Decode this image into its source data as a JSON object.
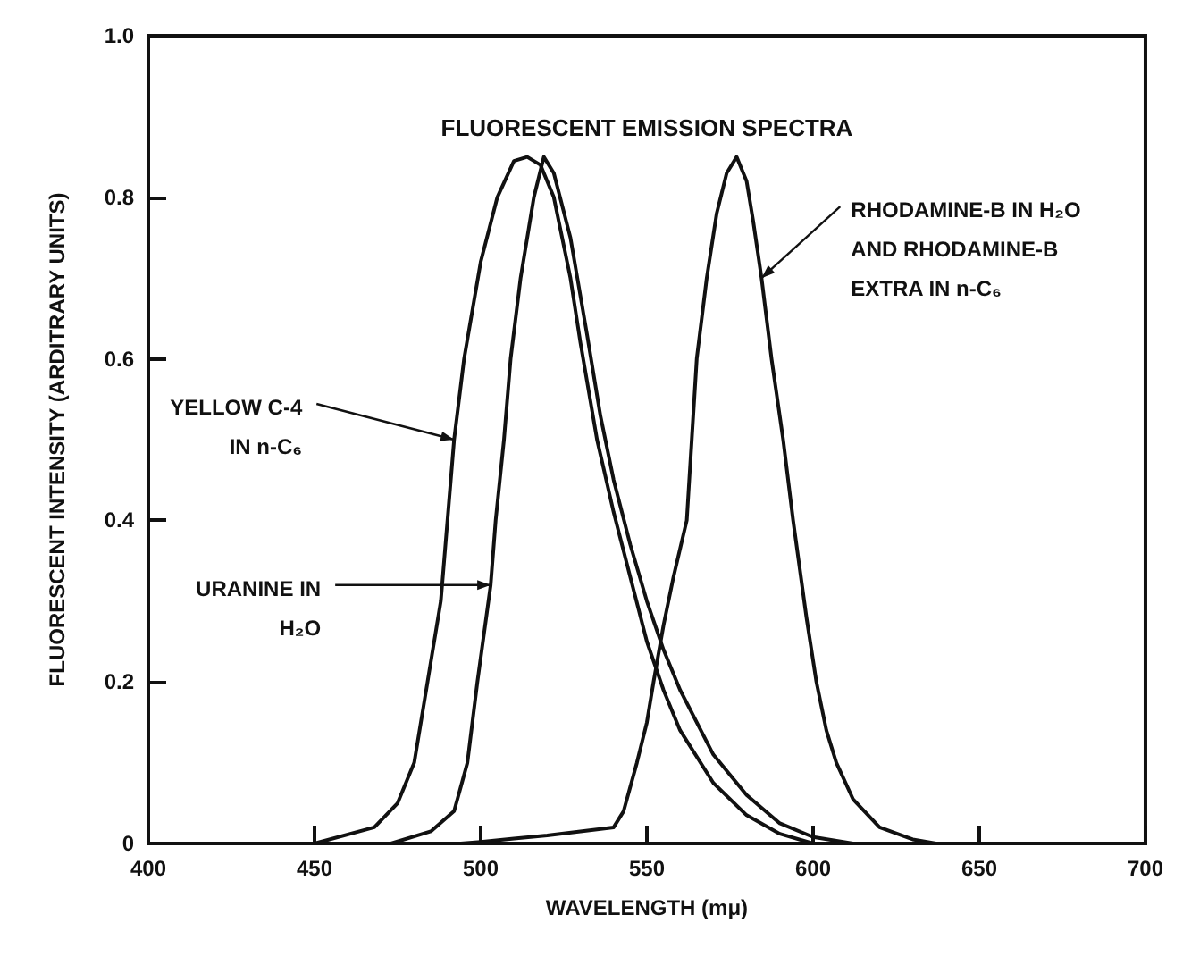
{
  "chart_data": {
    "type": "line",
    "title": "FLUORESCENT EMISSION SPECTRA",
    "xlabel": "WAVELENGTH (mμ)",
    "ylabel": "FLUORESCENT INTENSITY (ARDITRARY UNITS)",
    "xlim": [
      400,
      700
    ],
    "xticks": [
      400,
      450,
      500,
      550,
      600,
      650,
      700
    ],
    "ylim": [
      0,
      1
    ],
    "yticks": [
      {
        "value": 0,
        "label": "0"
      },
      0.2,
      0.4,
      0.6,
      0.8,
      {
        "value": 1,
        "label": "1.0"
      }
    ],
    "grid": false,
    "marker": "none",
    "line_style": "solid",
    "series": [
      {
        "color": "#111111",
        "x": [
          450,
          468,
          475,
          480,
          484,
          488,
          490,
          492,
          495,
          500,
          505,
          510,
          514,
          518,
          522,
          527,
          530,
          535,
          540,
          545,
          550,
          555,
          560,
          570,
          580,
          590,
          600
        ],
        "values": [
          0,
          0.02,
          0.05,
          0.1,
          0.2,
          0.3,
          0.4,
          0.5,
          0.6,
          0.72,
          0.8,
          0.845,
          0.85,
          0.84,
          0.8,
          0.7,
          0.62,
          0.5,
          0.41,
          0.33,
          0.25,
          0.19,
          0.14,
          0.075,
          0.035,
          0.012,
          0
        ]
      },
      {
        "color": "#111111",
        "x": [
          473,
          485,
          492,
          496,
          499,
          501,
          503,
          504.5,
          507,
          509,
          512,
          516,
          519,
          522,
          527,
          532,
          536,
          540,
          545,
          550,
          555,
          560,
          570,
          580,
          590,
          600,
          612
        ],
        "values": [
          0,
          0.015,
          0.04,
          0.1,
          0.2,
          0.26,
          0.32,
          0.4,
          0.5,
          0.6,
          0.7,
          0.8,
          0.85,
          0.83,
          0.75,
          0.63,
          0.53,
          0.45,
          0.37,
          0.3,
          0.24,
          0.19,
          0.11,
          0.06,
          0.025,
          0.008,
          0
        ]
      },
      {
        "color": "#111111",
        "x": [
          494,
          500,
          510,
          520,
          530,
          540,
          543,
          547,
          550,
          552,
          555,
          558,
          562,
          565,
          568,
          571,
          574,
          577,
          580,
          582,
          584.5,
          587.5,
          591,
          594,
          598,
          601,
          604,
          607,
          612,
          620,
          630,
          637
        ],
        "values": [
          0,
          0.002,
          0.006,
          0.01,
          0.015,
          0.02,
          0.04,
          0.1,
          0.15,
          0.2,
          0.27,
          0.33,
          0.4,
          0.6,
          0.7,
          0.78,
          0.83,
          0.85,
          0.82,
          0.77,
          0.7,
          0.6,
          0.5,
          0.4,
          0.28,
          0.2,
          0.14,
          0.1,
          0.055,
          0.02,
          0.005,
          0
        ]
      }
    ],
    "annotations": [
      {
        "text": "YELLOW C-4\nIN n-C₆",
        "x": 492,
        "y": 0.5
      },
      {
        "text": "URANINE IN\nH₂O",
        "x": 503,
        "y": 0.32
      },
      {
        "text": "RHODAMINE-B IN H₂O\nAND RHODAMINE-B\nEXTRA IN n-C₆",
        "x": 584.5,
        "y": 0.7
      }
    ]
  }
}
